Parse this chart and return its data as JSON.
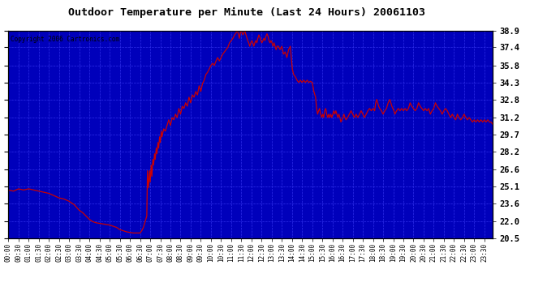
{
  "title": "Outdoor Temperature per Minute (Last 24 Hours) 20061103",
  "copyright_text": "Copyright 2006 Cartronics.com",
  "plot_bg_color": "#0000bb",
  "figure_bg_color": "#ffffff",
  "line_color": "#cc0000",
  "grid_color": "#3333ee",
  "yticks": [
    20.5,
    22.0,
    23.6,
    25.1,
    26.6,
    28.2,
    29.7,
    31.2,
    32.8,
    34.3,
    35.8,
    37.4,
    38.9
  ],
  "ymin": 20.5,
  "ymax": 38.9,
  "key_points": [
    [
      0,
      24.8
    ],
    [
      15,
      24.7
    ],
    [
      30,
      24.9
    ],
    [
      45,
      24.8
    ],
    [
      60,
      24.9
    ],
    [
      75,
      24.8
    ],
    [
      90,
      24.7
    ],
    [
      105,
      24.6
    ],
    [
      120,
      24.5
    ],
    [
      135,
      24.3
    ],
    [
      150,
      24.1
    ],
    [
      165,
      24.0
    ],
    [
      180,
      23.8
    ],
    [
      195,
      23.5
    ],
    [
      210,
      23.0
    ],
    [
      220,
      22.8
    ],
    [
      230,
      22.5
    ],
    [
      240,
      22.2
    ],
    [
      250,
      22.0
    ],
    [
      260,
      21.9
    ],
    [
      270,
      21.85
    ],
    [
      280,
      21.8
    ],
    [
      290,
      21.75
    ],
    [
      300,
      21.7
    ],
    [
      310,
      21.6
    ],
    [
      320,
      21.5
    ],
    [
      330,
      21.3
    ],
    [
      340,
      21.2
    ],
    [
      350,
      21.1
    ],
    [
      360,
      21.05
    ],
    [
      370,
      21.0
    ],
    [
      380,
      21.0
    ],
    [
      385,
      21.0
    ],
    [
      390,
      21.0
    ],
    [
      395,
      21.2
    ],
    [
      400,
      21.5
    ],
    [
      405,
      22.0
    ],
    [
      410,
      22.5
    ],
    [
      412,
      26.5
    ],
    [
      415,
      25.0
    ],
    [
      418,
      26.5
    ],
    [
      420,
      25.5
    ],
    [
      423,
      27.0
    ],
    [
      425,
      26.0
    ],
    [
      428,
      27.5
    ],
    [
      430,
      27.0
    ],
    [
      433,
      28.0
    ],
    [
      435,
      27.5
    ],
    [
      438,
      28.5
    ],
    [
      440,
      28.0
    ],
    [
      443,
      29.0
    ],
    [
      445,
      28.5
    ],
    [
      448,
      29.5
    ],
    [
      450,
      29.0
    ],
    [
      453,
      30.0
    ],
    [
      455,
      29.5
    ],
    [
      460,
      30.2
    ],
    [
      465,
      30.0
    ],
    [
      470,
      30.5
    ],
    [
      475,
      31.0
    ],
    [
      480,
      30.5
    ],
    [
      485,
      31.2
    ],
    [
      490,
      31.0
    ],
    [
      495,
      31.5
    ],
    [
      500,
      31.2
    ],
    [
      505,
      32.0
    ],
    [
      510,
      31.5
    ],
    [
      515,
      32.2
    ],
    [
      520,
      32.0
    ],
    [
      525,
      32.5
    ],
    [
      530,
      32.2
    ],
    [
      535,
      33.0
    ],
    [
      540,
      32.5
    ],
    [
      545,
      33.2
    ],
    [
      550,
      33.0
    ],
    [
      555,
      33.5
    ],
    [
      560,
      33.2
    ],
    [
      565,
      34.0
    ],
    [
      570,
      33.5
    ],
    [
      575,
      34.2
    ],
    [
      580,
      34.5
    ],
    [
      585,
      35.0
    ],
    [
      590,
      35.2
    ],
    [
      595,
      35.5
    ],
    [
      600,
      35.8
    ],
    [
      605,
      36.0
    ],
    [
      610,
      35.8
    ],
    [
      615,
      36.2
    ],
    [
      620,
      36.5
    ],
    [
      625,
      36.2
    ],
    [
      630,
      36.5
    ],
    [
      635,
      36.8
    ],
    [
      640,
      37.0
    ],
    [
      645,
      37.2
    ],
    [
      650,
      37.4
    ],
    [
      655,
      37.8
    ],
    [
      660,
      38.0
    ],
    [
      665,
      38.2
    ],
    [
      670,
      38.5
    ],
    [
      675,
      38.7
    ],
    [
      678,
      38.9
    ],
    [
      680,
      38.7
    ],
    [
      682,
      38.5
    ],
    [
      684,
      38.2
    ],
    [
      686,
      38.5
    ],
    [
      688,
      38.8
    ],
    [
      690,
      38.9
    ],
    [
      692,
      38.7
    ],
    [
      695,
      38.5
    ],
    [
      698,
      38.7
    ],
    [
      700,
      38.9
    ],
    [
      703,
      38.6
    ],
    [
      706,
      38.3
    ],
    [
      709,
      38.0
    ],
    [
      712,
      37.8
    ],
    [
      715,
      37.5
    ],
    [
      718,
      37.8
    ],
    [
      721,
      38.0
    ],
    [
      724,
      37.8
    ],
    [
      727,
      37.5
    ],
    [
      730,
      37.8
    ],
    [
      733,
      38.0
    ],
    [
      736,
      37.8
    ],
    [
      739,
      38.2
    ],
    [
      742,
      38.5
    ],
    [
      745,
      38.3
    ],
    [
      748,
      38.0
    ],
    [
      751,
      37.8
    ],
    [
      754,
      38.0
    ],
    [
      757,
      38.2
    ],
    [
      760,
      38.0
    ],
    [
      763,
      38.4
    ],
    [
      766,
      38.6
    ],
    [
      769,
      38.4
    ],
    [
      772,
      38.0
    ],
    [
      775,
      37.8
    ],
    [
      778,
      38.0
    ],
    [
      781,
      37.8
    ],
    [
      784,
      37.5
    ],
    [
      787,
      37.8
    ],
    [
      790,
      37.5
    ],
    [
      793,
      37.2
    ],
    [
      796,
      37.5
    ],
    [
      800,
      37.5
    ],
    [
      805,
      37.2
    ],
    [
      810,
      37.5
    ],
    [
      815,
      36.8
    ],
    [
      820,
      37.0
    ],
    [
      825,
      36.5
    ],
    [
      830,
      37.2
    ],
    [
      835,
      37.5
    ],
    [
      838,
      36.5
    ],
    [
      841,
      35.5
    ],
    [
      845,
      35.0
    ],
    [
      850,
      34.8
    ],
    [
      855,
      34.5
    ],
    [
      860,
      34.3
    ],
    [
      865,
      34.5
    ],
    [
      870,
      34.3
    ],
    [
      875,
      34.5
    ],
    [
      880,
      34.3
    ],
    [
      885,
      34.5
    ],
    [
      890,
      34.3
    ],
    [
      895,
      34.4
    ],
    [
      900,
      34.3
    ],
    [
      905,
      33.5
    ],
    [
      910,
      33.0
    ],
    [
      913,
      32.0
    ],
    [
      916,
      31.5
    ],
    [
      919,
      31.8
    ],
    [
      922,
      32.0
    ],
    [
      925,
      31.5
    ],
    [
      928,
      31.2
    ],
    [
      931,
      31.5
    ],
    [
      934,
      31.2
    ],
    [
      937,
      31.8
    ],
    [
      940,
      32.0
    ],
    [
      943,
      31.5
    ],
    [
      946,
      31.2
    ],
    [
      949,
      31.5
    ],
    [
      952,
      31.2
    ],
    [
      955,
      31.5
    ],
    [
      958,
      31.2
    ],
    [
      961,
      31.5
    ],
    [
      964,
      31.8
    ],
    [
      967,
      31.5
    ],
    [
      970,
      31.8
    ],
    [
      973,
      31.5
    ],
    [
      976,
      31.2
    ],
    [
      979,
      31.5
    ],
    [
      982,
      31.2
    ],
    [
      985,
      30.8
    ],
    [
      988,
      31.0
    ],
    [
      991,
      31.2
    ],
    [
      994,
      31.5
    ],
    [
      997,
      31.2
    ],
    [
      1000,
      31.0
    ],
    [
      1005,
      31.2
    ],
    [
      1010,
      31.5
    ],
    [
      1015,
      31.8
    ],
    [
      1020,
      31.5
    ],
    [
      1025,
      31.2
    ],
    [
      1030,
      31.5
    ],
    [
      1035,
      31.2
    ],
    [
      1040,
      31.5
    ],
    [
      1045,
      31.8
    ],
    [
      1050,
      31.5
    ],
    [
      1055,
      31.2
    ],
    [
      1060,
      31.5
    ],
    [
      1065,
      31.8
    ],
    [
      1070,
      32.0
    ],
    [
      1075,
      31.8
    ],
    [
      1080,
      32.0
    ],
    [
      1085,
      31.8
    ],
    [
      1088,
      32.5
    ],
    [
      1091,
      32.8
    ],
    [
      1094,
      32.5
    ],
    [
      1097,
      32.2
    ],
    [
      1100,
      32.0
    ],
    [
      1105,
      31.8
    ],
    [
      1110,
      31.5
    ],
    [
      1115,
      31.8
    ],
    [
      1120,
      32.0
    ],
    [
      1125,
      32.5
    ],
    [
      1130,
      32.8
    ],
    [
      1133,
      32.5
    ],
    [
      1136,
      32.2
    ],
    [
      1139,
      32.0
    ],
    [
      1142,
      31.8
    ],
    [
      1145,
      31.5
    ],
    [
      1150,
      31.8
    ],
    [
      1155,
      32.0
    ],
    [
      1160,
      31.8
    ],
    [
      1165,
      32.0
    ],
    [
      1170,
      31.8
    ],
    [
      1175,
      32.0
    ],
    [
      1180,
      31.8
    ],
    [
      1185,
      32.0
    ],
    [
      1190,
      32.5
    ],
    [
      1195,
      32.2
    ],
    [
      1200,
      32.0
    ],
    [
      1205,
      31.8
    ],
    [
      1210,
      32.0
    ],
    [
      1215,
      32.5
    ],
    [
      1220,
      32.2
    ],
    [
      1225,
      32.0
    ],
    [
      1230,
      31.8
    ],
    [
      1235,
      32.0
    ],
    [
      1240,
      31.8
    ],
    [
      1245,
      32.0
    ],
    [
      1250,
      31.5
    ],
    [
      1255,
      31.8
    ],
    [
      1260,
      32.0
    ],
    [
      1265,
      32.5
    ],
    [
      1270,
      32.2
    ],
    [
      1275,
      32.0
    ],
    [
      1280,
      31.8
    ],
    [
      1285,
      31.5
    ],
    [
      1290,
      31.8
    ],
    [
      1295,
      32.0
    ],
    [
      1300,
      31.8
    ],
    [
      1305,
      31.5
    ],
    [
      1310,
      31.2
    ],
    [
      1315,
      31.5
    ],
    [
      1320,
      31.2
    ],
    [
      1325,
      31.0
    ],
    [
      1330,
      31.5
    ],
    [
      1335,
      31.2
    ],
    [
      1340,
      31.0
    ],
    [
      1345,
      31.2
    ],
    [
      1350,
      31.5
    ],
    [
      1355,
      31.2
    ],
    [
      1360,
      31.0
    ],
    [
      1365,
      31.2
    ],
    [
      1370,
      31.0
    ],
    [
      1375,
      30.8
    ],
    [
      1380,
      31.0
    ],
    [
      1385,
      30.8
    ],
    [
      1390,
      31.0
    ],
    [
      1395,
      30.8
    ],
    [
      1400,
      31.0
    ],
    [
      1405,
      30.8
    ],
    [
      1410,
      31.0
    ],
    [
      1415,
      30.8
    ],
    [
      1420,
      31.0
    ],
    [
      1425,
      30.8
    ],
    [
      1430,
      30.8
    ],
    [
      1435,
      30.6
    ]
  ]
}
